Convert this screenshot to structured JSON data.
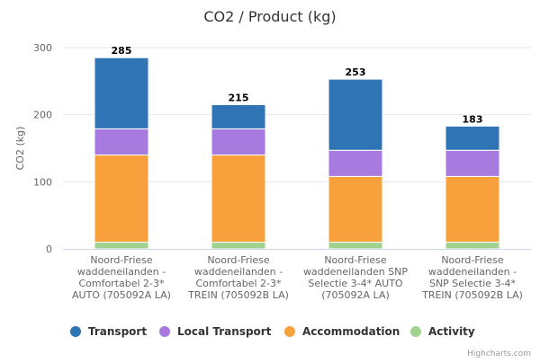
{
  "chart_data": {
    "type": "bar",
    "stacked": true,
    "title": "CO2 / Product (kg)",
    "xlabel": "",
    "ylabel": "CO2 (kg)",
    "ylim": [
      0,
      300
    ],
    "yticks": [
      0,
      100,
      200,
      300
    ],
    "grid": true,
    "legend_position": "bottom",
    "categories": [
      [
        "Noord-Friese",
        "waddeneilanden -",
        "Comfortabel 2-3*",
        "AUTO (705092A LA)"
      ],
      [
        "Noord-Friese",
        "waddeneilanden -",
        "Comfortabel 2-3*",
        "TREIN (705092B LA)"
      ],
      [
        "Noord-Friese",
        "waddeneilanden SNP",
        "Selectie 3-4* AUTO",
        "(705092A LA)"
      ],
      [
        "Noord-Friese",
        "waddeneilanden -",
        "SNP Selectie 3-4*",
        "TREIN (705092B LA)"
      ]
    ],
    "totals": [
      "285",
      "215",
      "253",
      "183"
    ],
    "series": [
      {
        "name": "Activity",
        "color": "#a2d28f",
        "values": [
          10,
          10,
          10,
          10
        ]
      },
      {
        "name": "Accommodation",
        "color": "#f7a03c",
        "values": [
          130,
          130,
          98,
          98
        ]
      },
      {
        "name": "Local Transport",
        "color": "#a77ae0",
        "values": [
          39,
          39,
          39,
          39
        ]
      },
      {
        "name": "Transport",
        "color": "#2f75b5",
        "values": [
          106,
          36,
          106,
          36
        ]
      }
    ],
    "legend_order": [
      "Transport",
      "Local Transport",
      "Accommodation",
      "Activity"
    ],
    "credits": "Highcharts.com"
  }
}
